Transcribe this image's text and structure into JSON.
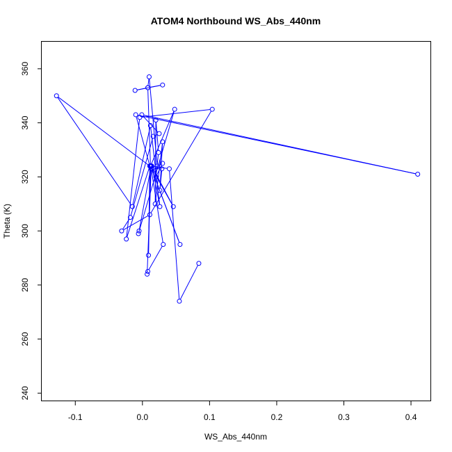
{
  "chart_data": {
    "type": "line",
    "title": "ATOM4 Northbound WS_Abs_440nm",
    "xlabel": "WS_Abs_440nm",
    "ylabel": "Theta (K)",
    "xlim": [
      -0.15,
      0.43
    ],
    "ylim": [
      237,
      370
    ],
    "x_ticks": [
      -0.1,
      0.0,
      0.1,
      0.2,
      0.3,
      0.4
    ],
    "x_tick_labels": [
      "-0.1",
      "0.0",
      "0.1",
      "0.2",
      "0.3",
      "0.4"
    ],
    "y_ticks": [
      240,
      260,
      280,
      300,
      320,
      340,
      360
    ],
    "y_tick_labels": [
      "240",
      "260",
      "280",
      "300",
      "320",
      "340",
      "360"
    ],
    "grid": false,
    "legend": "none",
    "marker": "open-circle",
    "series": [
      {
        "color": "#0000ff",
        "points": [
          {
            "x": 0.084,
            "y": 288
          },
          {
            "x": 0.055,
            "y": 274
          },
          {
            "x": 0.04,
            "y": 323
          },
          {
            "x": 0.014,
            "y": 324
          },
          {
            "x": 0.046,
            "y": 309
          },
          {
            "x": 0.012,
            "y": 324
          },
          {
            "x": 0.056,
            "y": 295
          },
          {
            "x": 0.012,
            "y": 324
          },
          {
            "x": 0.013,
            "y": 323
          },
          {
            "x": 0.031,
            "y": 295
          },
          {
            "x": 0.008,
            "y": 285
          },
          {
            "x": 0.007,
            "y": 284
          },
          {
            "x": 0.013,
            "y": 323
          },
          {
            "x": 0.012,
            "y": 324
          },
          {
            "x": 0.009,
            "y": 291
          },
          {
            "x": 0.011,
            "y": 324
          },
          {
            "x": -0.024,
            "y": 297
          },
          {
            "x": -0.004,
            "y": 342
          },
          {
            "x": 0.104,
            "y": 345
          },
          {
            "x": 0.011,
            "y": 306
          },
          {
            "x": -0.031,
            "y": 300
          },
          {
            "x": -0.018,
            "y": 305
          },
          {
            "x": 0.016,
            "y": 335
          },
          {
            "x": 0.025,
            "y": 336
          },
          {
            "x": -0.001,
            "y": 343
          },
          {
            "x": 0.41,
            "y": 321
          },
          {
            "x": -0.01,
            "y": 343
          },
          {
            "x": 0.011,
            "y": 324
          },
          {
            "x": -0.128,
            "y": 350
          },
          {
            "x": -0.015,
            "y": 309
          },
          {
            "x": 0.012,
            "y": 339
          },
          {
            "x": 0.026,
            "y": 309
          },
          {
            "x": 0.015,
            "y": 323
          },
          {
            "x": 0.029,
            "y": 323
          },
          {
            "x": 0.026,
            "y": 315
          },
          {
            "x": 0.03,
            "y": 333
          },
          {
            "x": 0.019,
            "y": 310
          },
          {
            "x": 0.02,
            "y": 341
          },
          {
            "x": 0.024,
            "y": 329
          },
          {
            "x": 0.02,
            "y": 320
          },
          {
            "x": 0.03,
            "y": 325
          },
          {
            "x": 0.022,
            "y": 324
          },
          {
            "x": 0.01,
            "y": 357
          },
          {
            "x": 0.008,
            "y": 353
          },
          {
            "x": -0.011,
            "y": 352
          },
          {
            "x": 0.03,
            "y": 354
          },
          {
            "x": 0.008,
            "y": 353
          },
          {
            "x": 0.012,
            "y": 324
          },
          {
            "x": 0.048,
            "y": 345
          },
          {
            "x": -0.006,
            "y": 299
          },
          {
            "x": -0.005,
            "y": 300
          },
          {
            "x": 0.013,
            "y": 324
          }
        ]
      }
    ]
  }
}
